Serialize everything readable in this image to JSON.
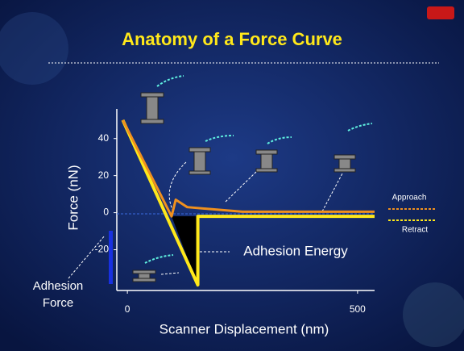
{
  "chart_data": {
    "type": "line",
    "title": "Anatomy of a Force Curve",
    "x_label": "Scanner Displacement (nm)",
    "y_label": "Force (nN)",
    "annotations": [
      "Adhesion Energy",
      "Adhesion Force"
    ],
    "xlim": [
      -23,
      537
    ],
    "ylim": [
      -42,
      56
    ],
    "xticks": [
      0,
      500
    ],
    "yticks": [
      -20,
      0,
      20,
      40
    ],
    "series": [
      {
        "name": "Retract",
        "color": "#ffe81a",
        "x": [
          -10,
          153,
          153,
          537
        ],
        "values": [
          50,
          -39,
          -2,
          -2
        ]
      },
      {
        "name": "Approach",
        "color": "#f0901e",
        "x": [
          -10,
          96,
          105,
          130,
          250,
          537
        ],
        "values": [
          50,
          -2,
          7,
          3,
          0.5,
          0.5
        ]
      }
    ]
  }
}
